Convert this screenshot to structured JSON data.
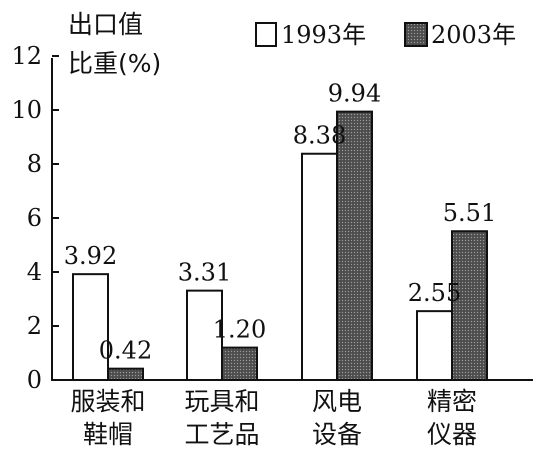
{
  "chart_data": {
    "type": "bar",
    "ylabel_line1": "出口值",
    "ylabel_line2": "比重(%)",
    "categories": [
      [
        "服装和",
        "鞋帽"
      ],
      [
        "玩具和",
        "工艺品"
      ],
      [
        "风电",
        "设备"
      ],
      [
        "精密",
        "仪器"
      ]
    ],
    "series": [
      {
        "name": "1993年",
        "values": [
          3.92,
          3.31,
          8.38,
          2.55
        ],
        "value_labels": [
          "3.92",
          "3.31",
          "8.38",
          "2.55"
        ],
        "fill": "#ffffff",
        "pattern": "none"
      },
      {
        "name": "2003年",
        "values": [
          0.42,
          1.2,
          9.94,
          5.51
        ],
        "value_labels": [
          "0.42",
          "1.20",
          "9.94",
          "5.51"
        ],
        "fill": "#4a4a4a",
        "pattern": "dotted-gray"
      }
    ],
    "ylim": [
      0,
      12
    ],
    "yticks": [
      "0",
      "2",
      "4",
      "6",
      "8",
      "10",
      "12"
    ],
    "grid": false,
    "legend_position": "top-right"
  }
}
